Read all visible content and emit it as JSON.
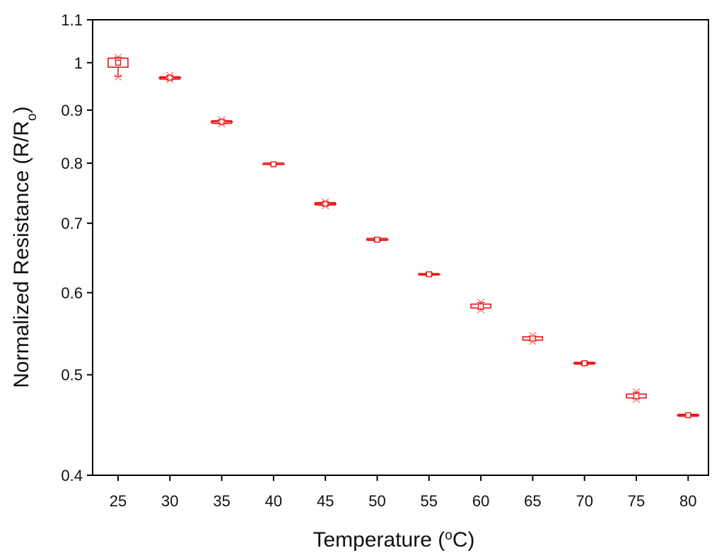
{
  "chart_data": {
    "type": "box",
    "title": "",
    "xlabel": {
      "main": "Temperature (",
      "sup": "o",
      "tail": "C)"
    },
    "ylabel": {
      "main": "Normalized Resistance (R/R",
      "sub": "o",
      "tail": ")"
    },
    "y_scale": "log",
    "ylim": [
      0.4,
      1.1
    ],
    "yticks": [
      {
        "value": 0.4,
        "label": "0.4"
      },
      {
        "value": 0.5,
        "label": "0.5"
      },
      {
        "value": 0.6,
        "label": "0.6"
      },
      {
        "value": 0.7,
        "label": "0.7"
      },
      {
        "value": 0.8,
        "label": "0.8"
      },
      {
        "value": 0.9,
        "label": "0.9"
      },
      {
        "value": 1.0,
        "label": "1"
      },
      {
        "value": 1.1,
        "label": "1.1"
      }
    ],
    "categories": [
      "25",
      "30",
      "35",
      "40",
      "45",
      "50",
      "55",
      "60",
      "65",
      "70",
      "75",
      "80"
    ],
    "boxes": [
      {
        "x": "25",
        "mean": 1.0,
        "q1": 0.99,
        "q3": 1.01,
        "low": 0.97,
        "high": 1.012,
        "outliers": [
          0.968,
          1.013
        ]
      },
      {
        "x": "30",
        "mean": 0.967,
        "q1": 0.964,
        "q3": 0.969,
        "low": 0.963,
        "high": 0.972,
        "outliers": [
          0.962,
          0.973
        ]
      },
      {
        "x": "35",
        "mean": 0.877,
        "q1": 0.874,
        "q3": 0.879,
        "low": 0.873,
        "high": 0.881,
        "outliers": [
          0.872,
          0.882
        ]
      },
      {
        "x": "40",
        "mean": 0.798,
        "q1": 0.797,
        "q3": 0.799,
        "low": 0.797,
        "high": 0.799,
        "outliers": []
      },
      {
        "x": "45",
        "mean": 0.731,
        "q1": 0.729,
        "q3": 0.733,
        "low": 0.728,
        "high": 0.734,
        "outliers": [
          0.727,
          0.735
        ]
      },
      {
        "x": "50",
        "mean": 0.675,
        "q1": 0.674,
        "q3": 0.677,
        "low": 0.673,
        "high": 0.677,
        "outliers": []
      },
      {
        "x": "55",
        "mean": 0.625,
        "q1": 0.624,
        "q3": 0.626,
        "low": 0.623,
        "high": 0.627,
        "outliers": []
      },
      {
        "x": "60",
        "mean": 0.582,
        "q1": 0.58,
        "q3": 0.585,
        "low": 0.578,
        "high": 0.587,
        "outliers": [
          0.577,
          0.588
        ]
      },
      {
        "x": "65",
        "mean": 0.542,
        "q1": 0.54,
        "q3": 0.544,
        "low": 0.539,
        "high": 0.545,
        "outliers": [
          0.538,
          0.546
        ]
      },
      {
        "x": "70",
        "mean": 0.513,
        "q1": 0.512,
        "q3": 0.514,
        "low": 0.511,
        "high": 0.515,
        "outliers": []
      },
      {
        "x": "75",
        "mean": 0.477,
        "q1": 0.475,
        "q3": 0.479,
        "low": 0.474,
        "high": 0.481,
        "outliers": [
          0.473,
          0.482
        ]
      },
      {
        "x": "80",
        "mean": 0.457,
        "q1": 0.456,
        "q3": 0.458,
        "low": 0.456,
        "high": 0.458,
        "outliers": []
      }
    ],
    "grid": false,
    "legend": "none",
    "colors": {
      "series": "#ee1111",
      "axis": "#000000",
      "text": "#111111"
    }
  }
}
